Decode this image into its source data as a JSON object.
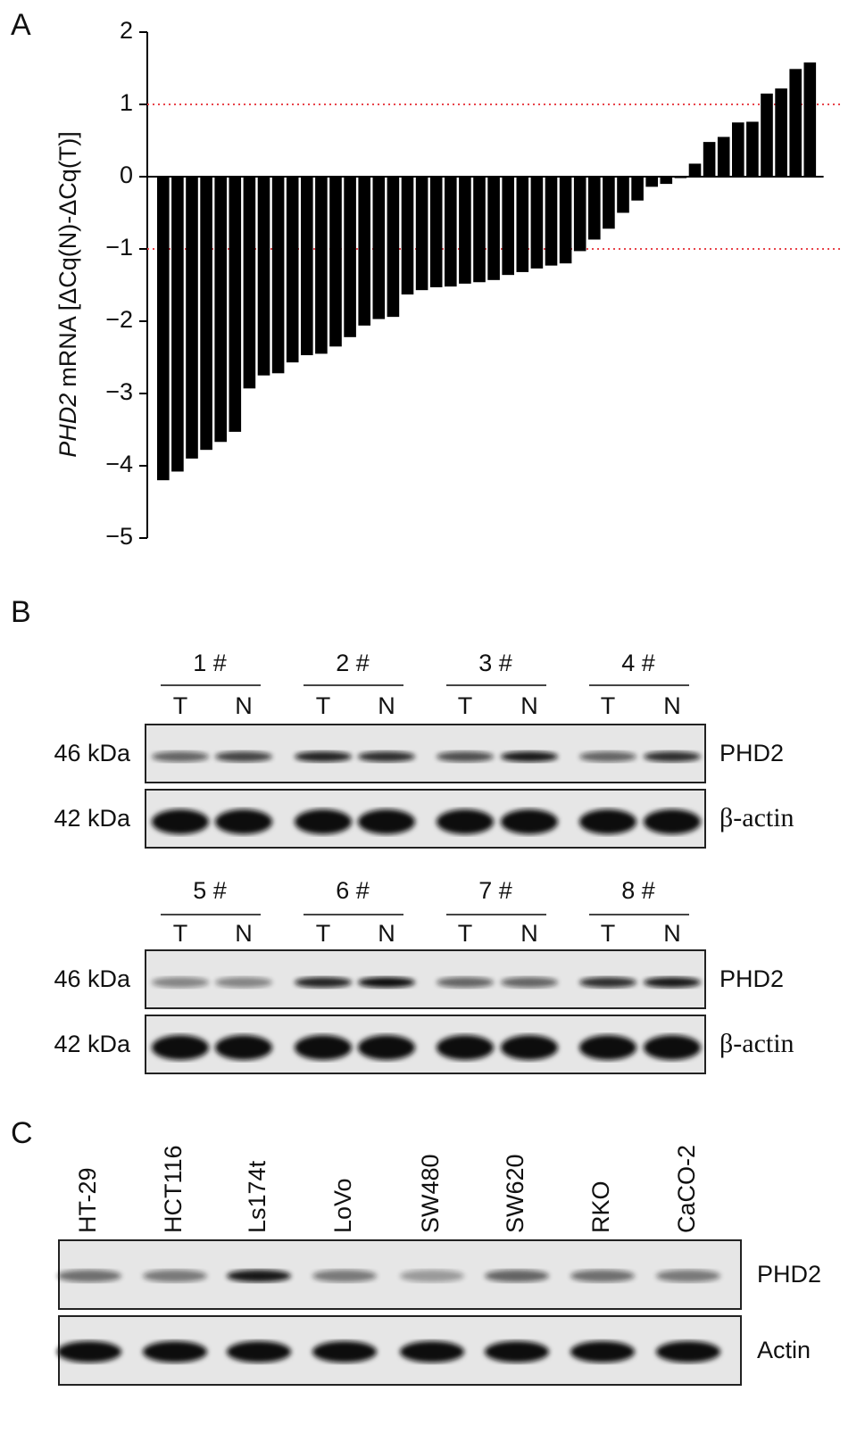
{
  "chart_data": {
    "type": "bar",
    "ylabel_gene": "PHD2",
    "ylabel": "mRNA [ΔCq(N)-ΔCq(T)]",
    "categories": [
      null,
      null,
      null,
      null,
      null,
      null,
      null,
      null,
      null,
      null,
      null,
      null,
      null,
      null,
      null,
      null,
      null,
      null,
      null,
      null,
      null,
      null,
      null,
      null,
      null,
      null,
      null,
      null,
      null,
      null,
      null,
      null,
      null,
      null,
      null,
      null,
      null,
      null,
      null,
      null,
      null,
      null,
      null,
      null,
      null,
      null
    ],
    "values": [
      -4.2,
      -4.08,
      -3.9,
      -3.78,
      -3.67,
      -3.53,
      -2.93,
      -2.75,
      -2.72,
      -2.57,
      -2.47,
      -2.45,
      -2.35,
      -2.22,
      -2.06,
      -1.97,
      -1.94,
      -1.63,
      -1.57,
      -1.53,
      -1.52,
      -1.48,
      -1.46,
      -1.43,
      -1.36,
      -1.32,
      -1.27,
      -1.23,
      -1.2,
      -1.03,
      -0.87,
      -0.72,
      -0.5,
      -0.33,
      -0.14,
      -0.1,
      -0.02,
      0.18,
      0.48,
      0.55,
      0.75,
      0.76,
      1.15,
      1.22,
      1.49,
      1.58
    ],
    "color": "#000000",
    "ylim": [
      -5,
      2
    ],
    "yticks": [
      {
        "value": -5,
        "label": "−5"
      },
      {
        "value": -4,
        "label": "−4"
      },
      {
        "value": -3,
        "label": "−3"
      },
      {
        "value": -2,
        "label": "−2"
      },
      {
        "value": -1,
        "label": "−1"
      },
      0,
      1,
      2
    ],
    "reference_lines": [
      1,
      -1
    ],
    "reference_color": "#e8434a"
  },
  "panel_labels": [
    "A",
    "B",
    "C"
  ],
  "panel_b": {
    "blots": [
      {
        "groups": [
          "1 #",
          "2 #",
          "3 #",
          "4 #"
        ],
        "lanes": [
          "T",
          "N",
          "T",
          "N",
          "T",
          "N",
          "T",
          "N"
        ],
        "rows": [
          {
            "size": "46 kDa",
            "protein": "PHD2"
          },
          {
            "size": "42 kDa",
            "protein": "β-actin"
          }
        ]
      },
      {
        "groups": [
          "5 #",
          "6 #",
          "7 #",
          "8 #"
        ],
        "lanes": [
          "T",
          "N",
          "T",
          "N",
          "T",
          "N",
          "T",
          "N"
        ],
        "rows": [
          {
            "size": "46 kDa",
            "protein": "PHD2"
          },
          {
            "size": "42 kDa",
            "protein": "β-actin"
          }
        ]
      }
    ]
  },
  "panel_c": {
    "cell_lines": [
      "HT-29",
      "HCT116",
      "Ls174t",
      "LoVo",
      "SW480",
      "SW620",
      "RKO",
      "CaCO-2"
    ],
    "rows": [
      "PHD2",
      "Actin"
    ]
  }
}
